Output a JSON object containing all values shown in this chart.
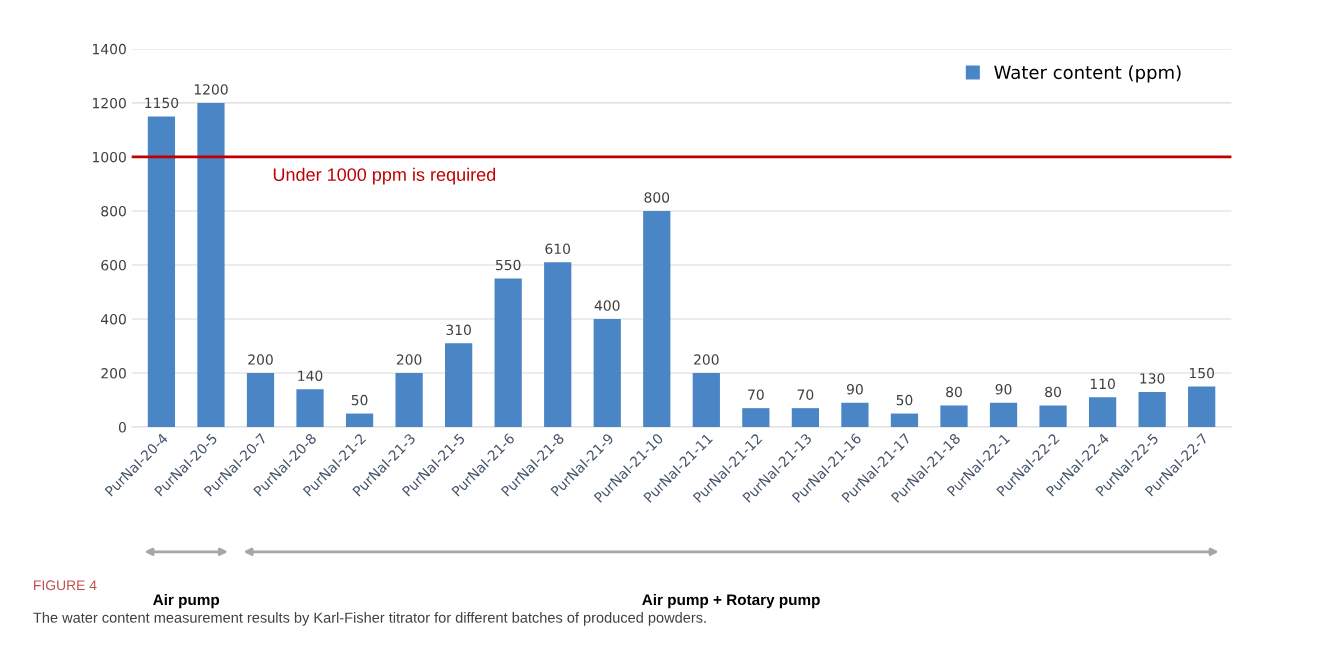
{
  "chart_data": {
    "type": "bar",
    "categories": [
      "PurNaI-20-4",
      "PurNaI-20-5",
      "PurNaI-20-7",
      "PurNaI-20-8",
      "PurNaI-21-2",
      "PurNaI-21-3",
      "PurNaI-21-5",
      "PurNaI-21-6",
      "PurNaI-21-8",
      "PurNaI-21-9",
      "PurNaI-21-10",
      "PurNaI-21-11",
      "PurNaI-21-12",
      "PurNaI-21-13",
      "PurNaI-21-16",
      "PurNaI-21-17",
      "PurNaI-21-18",
      "PurNaI-22-1",
      "PurNaI-22-2",
      "PurNaI-22-4",
      "PurNaI-22-5",
      "PurNaI-22-7"
    ],
    "series": [
      {
        "name": "Water content (ppm)",
        "color": "#4a86c5",
        "values": [
          1150,
          1200,
          200,
          140,
          50,
          200,
          310,
          550,
          610,
          400,
          800,
          200,
          70,
          70,
          90,
          50,
          80,
          90,
          80,
          110,
          130,
          150
        ]
      }
    ],
    "ylim": [
      0,
      1400
    ],
    "yticks": [
      0,
      200,
      400,
      600,
      800,
      1000,
      1200,
      1400
    ],
    "ref_lines": [
      {
        "axis": "y",
        "value": 1000,
        "label": "Under 1000 ppm is required",
        "color": "#c00000",
        "line_style": "solid"
      }
    ],
    "annotations": [
      "Air pump",
      "Air pump + Rotary pump",
      "FIGURE 4",
      "The water content measurement results by Karl-Fisher titrator for different batches of produced powders."
    ],
    "data_labels": true,
    "grid": "y",
    "legend": "top right"
  }
}
